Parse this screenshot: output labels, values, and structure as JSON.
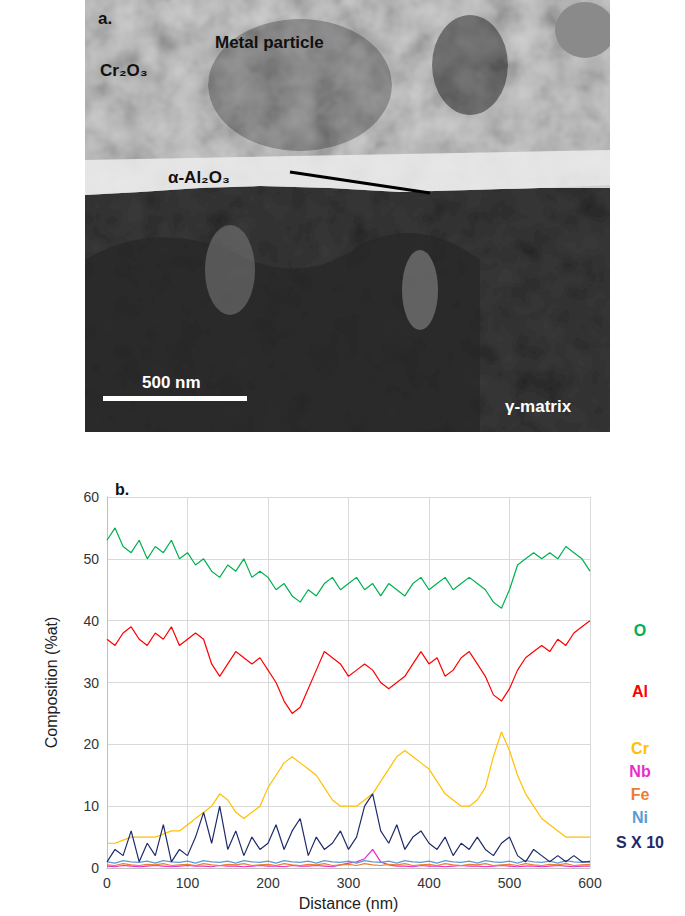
{
  "image_panel": {
    "label": "a.",
    "annotations": [
      "Metal particle",
      "Cr₂O₃",
      "α-Al₂O₃",
      "γ-matrix"
    ],
    "scale_bar": "500 nm"
  },
  "chart_data": {
    "type": "line",
    "title": "b.",
    "x_label": "Distance (nm)",
    "y_label": "Composition (%at)",
    "x": [
      0,
      10,
      20,
      30,
      40,
      50,
      60,
      70,
      80,
      90,
      100,
      110,
      120,
      130,
      140,
      150,
      160,
      170,
      180,
      190,
      200,
      210,
      220,
      230,
      240,
      250,
      260,
      270,
      280,
      290,
      300,
      310,
      320,
      330,
      340,
      350,
      360,
      370,
      380,
      390,
      400,
      410,
      420,
      430,
      440,
      450,
      460,
      470,
      480,
      490,
      500,
      510,
      520,
      530,
      540,
      550,
      560,
      570,
      580,
      590,
      600
    ],
    "series": [
      {
        "name": "O",
        "color": "#00b050",
        "values": [
          53,
          55,
          52,
          51,
          53,
          50,
          52,
          51,
          53,
          50,
          51,
          49,
          50,
          48,
          47,
          49,
          48,
          50,
          47,
          48,
          47,
          45,
          46,
          44,
          43,
          45,
          44,
          46,
          47,
          45,
          46,
          47,
          45,
          46,
          44,
          46,
          45,
          44,
          46,
          47,
          45,
          46,
          47,
          45,
          46,
          47,
          46,
          45,
          43,
          42,
          45,
          49,
          50,
          51,
          50,
          51,
          50,
          52,
          51,
          50,
          48
        ]
      },
      {
        "name": "Al",
        "color": "#ff0000",
        "values": [
          37,
          36,
          38,
          39,
          37,
          36,
          38,
          37,
          39,
          36,
          37,
          38,
          37,
          33,
          31,
          33,
          35,
          34,
          33,
          34,
          32,
          30,
          27,
          25,
          26,
          29,
          32,
          35,
          34,
          33,
          31,
          32,
          33,
          32,
          30,
          29,
          30,
          31,
          33,
          35,
          33,
          34,
          31,
          32,
          34,
          35,
          33,
          31,
          28,
          27,
          29,
          32,
          34,
          35,
          36,
          35,
          37,
          36,
          38,
          39,
          40
        ]
      },
      {
        "name": "Cr",
        "color": "#ffc000",
        "values": [
          4,
          4,
          4.5,
          5,
          5,
          5,
          5,
          5.5,
          6,
          6,
          7,
          8,
          9,
          10,
          12,
          11,
          9,
          8,
          9,
          10,
          13,
          15,
          17,
          18,
          17,
          16,
          15,
          13,
          11,
          10,
          10,
          10,
          11,
          12,
          14,
          16,
          18,
          19,
          18,
          17,
          16,
          14,
          12,
          11,
          10,
          10,
          11,
          13,
          18,
          22,
          19,
          15,
          12,
          10,
          8,
          7,
          6,
          5,
          5,
          5,
          5
        ]
      },
      {
        "name": "Nb",
        "color": "#e62ec8",
        "values": [
          0.3,
          0.2,
          0.4,
          0.3,
          0.2,
          0.3,
          0.4,
          0.3,
          0.2,
          0.3,
          0.4,
          0.3,
          0.3,
          0.2,
          0.4,
          0.3,
          0.3,
          0.2,
          0.3,
          0.4,
          0.3,
          0.3,
          0.2,
          0.4,
          0.3,
          0.3,
          0.4,
          0.3,
          0.2,
          0.5,
          0.8,
          1.0,
          1.5,
          3,
          1,
          0.5,
          0.3,
          0.3,
          0.2,
          0.4,
          0.3,
          0.3,
          0.2,
          0.3,
          0.4,
          0.3,
          0.3,
          0.2,
          0.3,
          0.4,
          0.3,
          0.2,
          0.3,
          0.3,
          0.2,
          0.3,
          0.4,
          0.3,
          0.2,
          0.3,
          0.3
        ]
      },
      {
        "name": "Fe",
        "color": "#ed7d31",
        "values": [
          0.5,
          0.4,
          0.7,
          0.5,
          0.4,
          0.6,
          0.5,
          0.7,
          0.4,
          0.5,
          0.6,
          0.4,
          0.7,
          0.5,
          0.4,
          0.6,
          0.5,
          0.7,
          0.4,
          0.5,
          0.6,
          0.4,
          0.7,
          0.5,
          0.4,
          0.6,
          0.5,
          0.7,
          0.4,
          0.5,
          0.6,
          0.4,
          0.7,
          0.5,
          0.4,
          0.6,
          0.5,
          0.7,
          0.4,
          0.5,
          0.6,
          0.4,
          0.7,
          0.5,
          0.4,
          0.6,
          0.5,
          0.7,
          0.4,
          0.5,
          0.6,
          0.4,
          0.7,
          0.5,
          0.4,
          0.6,
          0.5,
          0.7,
          0.4,
          0.5,
          0.6
        ]
      },
      {
        "name": "Ni",
        "color": "#5b9bd5",
        "values": [
          1,
          0.8,
          1.2,
          1,
          0.9,
          1.1,
          0.8,
          1.2,
          1,
          0.9,
          1.1,
          0.8,
          1.2,
          1,
          0.9,
          1.1,
          0.8,
          1.2,
          1,
          0.9,
          1.1,
          0.8,
          1.2,
          1,
          0.9,
          1.1,
          0.8,
          1.2,
          1,
          0.9,
          1.1,
          0.8,
          1.2,
          1,
          0.9,
          1.1,
          0.8,
          1.2,
          1,
          0.9,
          1.1,
          0.8,
          1.2,
          1,
          0.9,
          1.1,
          0.8,
          1.2,
          1,
          0.9,
          1.1,
          0.8,
          1.2,
          1,
          0.9,
          1.1,
          0.8,
          1.2,
          1,
          0.9,
          1.1
        ]
      },
      {
        "name": "S X 10",
        "color": "#1f2a6b",
        "values": [
          1,
          3,
          2,
          6,
          1,
          4,
          2,
          7,
          1,
          3,
          2,
          5,
          9,
          4,
          10,
          3,
          6,
          2,
          5,
          3,
          4,
          7,
          3,
          6,
          8,
          2,
          5,
          3,
          4,
          6,
          3,
          5,
          10,
          12,
          6,
          4,
          7,
          3,
          5,
          6,
          4,
          3,
          5,
          2,
          4,
          3,
          5,
          3,
          2,
          4,
          5,
          2,
          1,
          3,
          2,
          1,
          2,
          1,
          2,
          1,
          1
        ]
      }
    ],
    "xlim": [
      0,
      600
    ],
    "xticks": [
      0,
      100,
      200,
      300,
      400,
      500,
      600
    ],
    "ylim": [
      0,
      60
    ],
    "yticks": [
      0,
      10,
      20,
      30,
      40,
      50,
      60
    ],
    "grid": true,
    "legend": "right"
  }
}
